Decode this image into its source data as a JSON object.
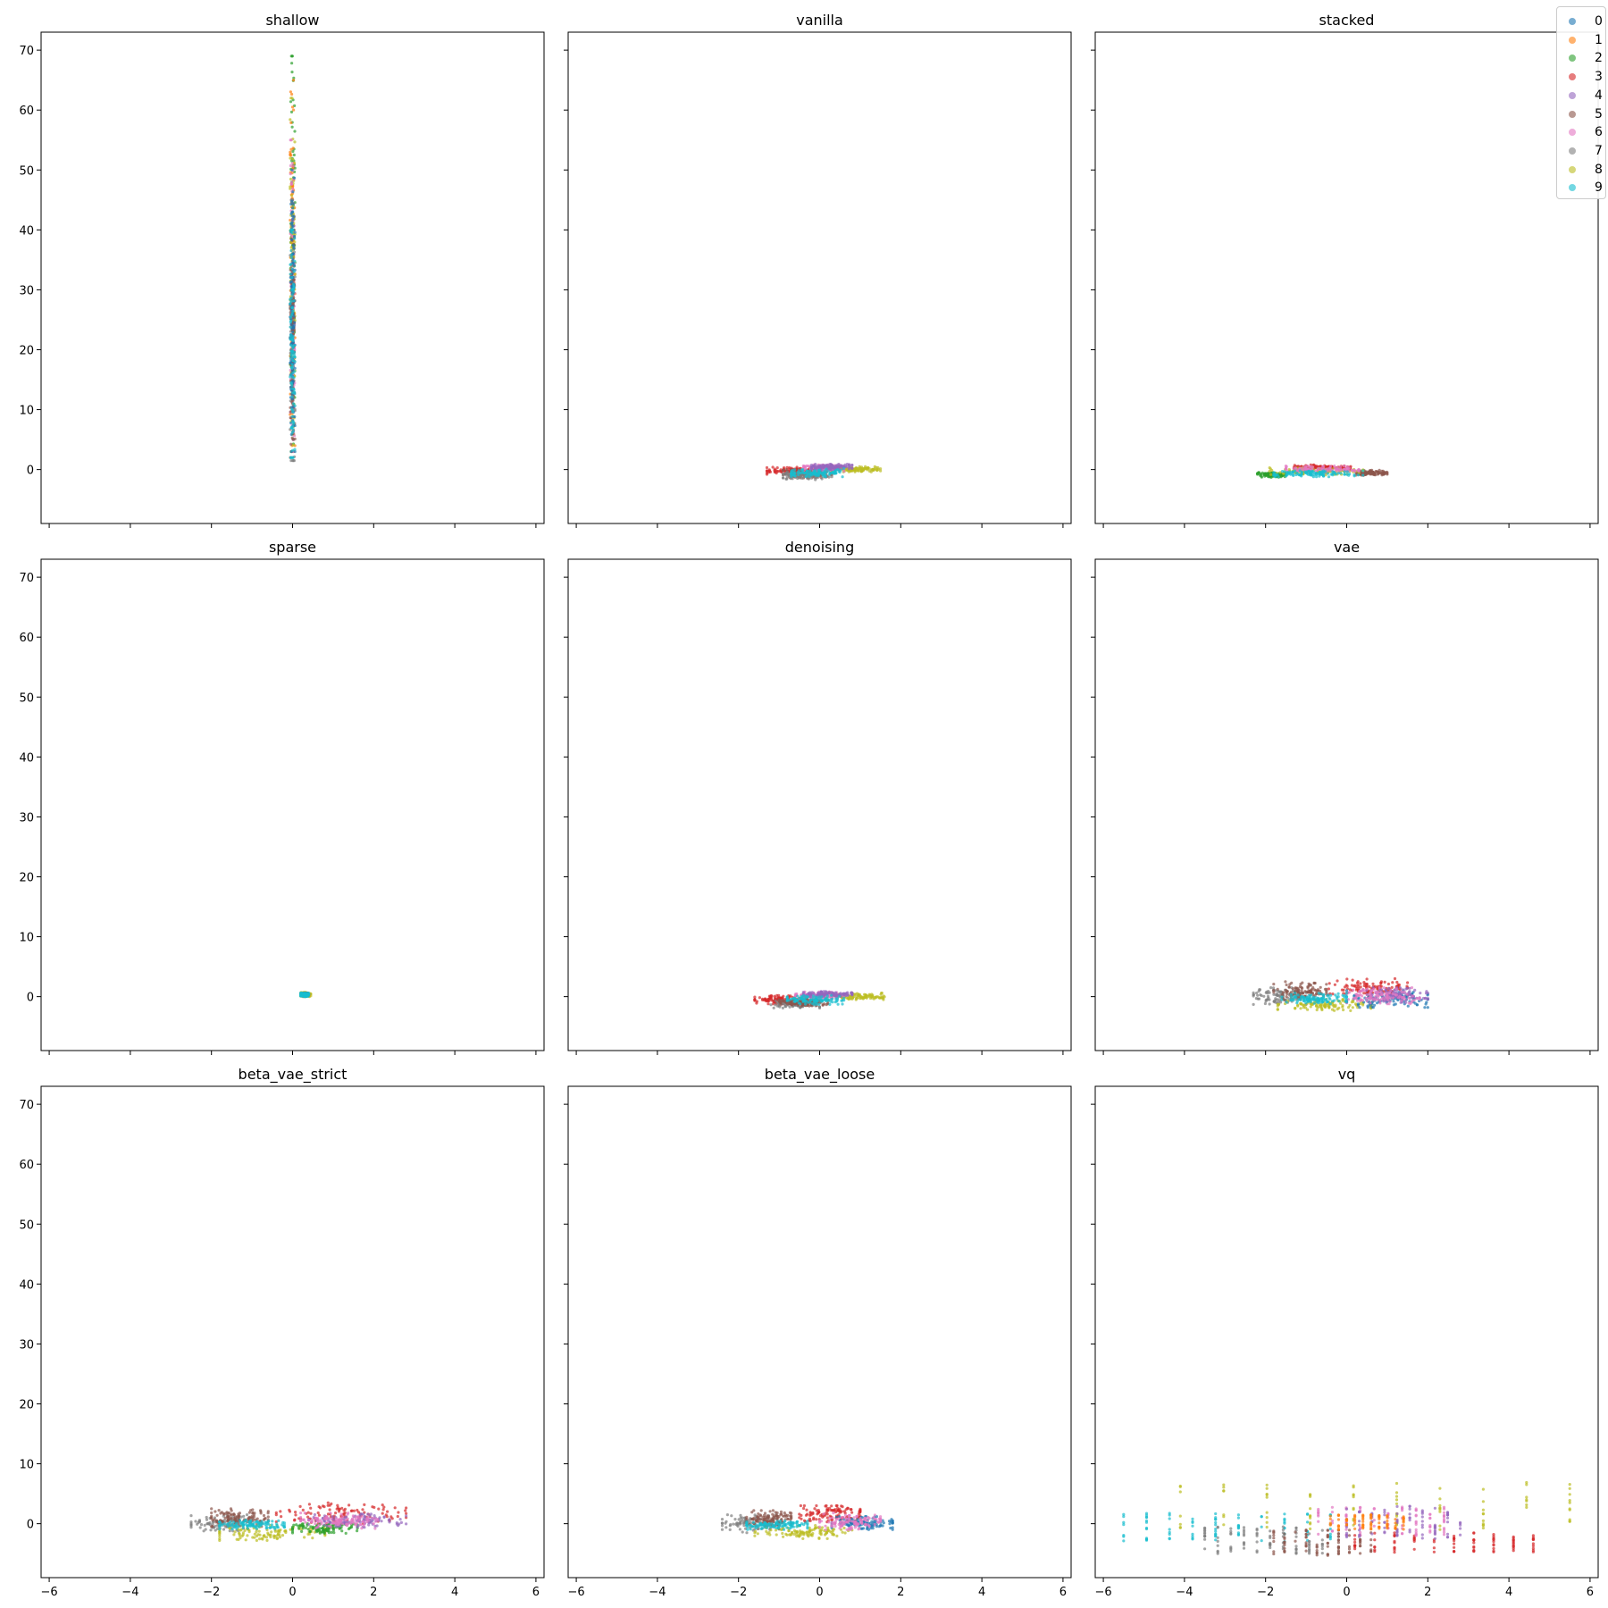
{
  "chart_data": {
    "type": "scatter",
    "xlim": [
      -6.2,
      6.2
    ],
    "ylim": [
      -9,
      73
    ],
    "xticks": [
      -6,
      -4,
      -2,
      0,
      2,
      4,
      6
    ],
    "yticks": [
      0,
      10,
      20,
      30,
      40,
      50,
      60,
      70
    ],
    "shared_axes": true,
    "grid": false,
    "legend_placement": "top-right",
    "legend_entries": [
      "0",
      "1",
      "2",
      "3",
      "4",
      "5",
      "6",
      "7",
      "8",
      "9"
    ],
    "class_colors": [
      "#1f77b4",
      "#ff7f0e",
      "#2ca02c",
      "#d62728",
      "#9467bd",
      "#8c564b",
      "#e377c2",
      "#7f7f7f",
      "#bcbd22",
      "#17becf"
    ],
    "subplots": [
      {
        "title": "shallow",
        "clusters": [
          {
            "cls": 2,
            "x": [
              -0.06,
              0.06
            ],
            "y": [
              3,
              69
            ]
          },
          {
            "cls": 1,
            "x": [
              -0.06,
              0.06
            ],
            "y": [
              4,
              65
            ]
          },
          {
            "cls": 8,
            "x": [
              -0.06,
              0.06
            ],
            "y": [
              3,
              62
            ]
          },
          {
            "cls": 6,
            "x": [
              -0.05,
              0.05
            ],
            "y": [
              3,
              55
            ]
          },
          {
            "cls": 7,
            "x": [
              -0.06,
              0.06
            ],
            "y": [
              1.5,
              45
            ]
          },
          {
            "cls": 5,
            "x": [
              -0.06,
              0.06
            ],
            "y": [
              2,
              40
            ]
          },
          {
            "cls": 0,
            "x": [
              -0.06,
              0.06
            ],
            "y": [
              3,
              50
            ]
          },
          {
            "cls": 9,
            "x": [
              -0.06,
              0.06
            ],
            "y": [
              2,
              40
            ]
          }
        ]
      },
      {
        "title": "vanilla",
        "clusters": [
          {
            "cls": 3,
            "x": [
              -1.3,
              0.0
            ],
            "y": [
              -0.8,
              0.4
            ]
          },
          {
            "cls": 5,
            "x": [
              -0.9,
              0.3
            ],
            "y": [
              -1.4,
              0.0
            ]
          },
          {
            "cls": 7,
            "x": [
              -0.9,
              0.3
            ],
            "y": [
              -1.7,
              -0.3
            ]
          },
          {
            "cls": 8,
            "x": [
              0.3,
              1.5
            ],
            "y": [
              -0.4,
              0.5
            ]
          },
          {
            "cls": 6,
            "x": [
              -0.4,
              0.6
            ],
            "y": [
              -0.3,
              0.8
            ]
          },
          {
            "cls": 4,
            "x": [
              -0.2,
              0.8
            ],
            "y": [
              0.0,
              0.9
            ]
          },
          {
            "cls": 9,
            "x": [
              -0.7,
              0.6
            ],
            "y": [
              -1.2,
              0.2
            ]
          }
        ]
      },
      {
        "title": "stacked",
        "clusters": [
          {
            "cls": 2,
            "x": [
              -2.2,
              -1.5
            ],
            "y": [
              -1.3,
              -0.5
            ]
          },
          {
            "cls": 5,
            "x": [
              0.2,
              1.0
            ],
            "y": [
              -1.0,
              -0.1
            ]
          },
          {
            "cls": 3,
            "x": [
              -1.3,
              0.1
            ],
            "y": [
              0.0,
              0.8
            ]
          },
          {
            "cls": 8,
            "x": [
              -1.9,
              0.4
            ],
            "y": [
              -0.9,
              0.3
            ]
          },
          {
            "cls": 6,
            "x": [
              -1.5,
              0.3
            ],
            "y": [
              -0.5,
              0.6
            ]
          },
          {
            "cls": 9,
            "x": [
              -1.8,
              0.4
            ],
            "y": [
              -1.2,
              -0.2
            ]
          }
        ]
      },
      {
        "title": "sparse",
        "clusters": [
          {
            "cls": 8,
            "x": [
              0.2,
              0.45
            ],
            "y": [
              0.0,
              0.7
            ]
          },
          {
            "cls": 1,
            "x": [
              0.2,
              0.4
            ],
            "y": [
              0.0,
              0.6
            ]
          },
          {
            "cls": 0,
            "x": [
              0.22,
              0.38
            ],
            "y": [
              0.1,
              0.6
            ]
          },
          {
            "cls": 9,
            "x": [
              0.2,
              0.4
            ],
            "y": [
              0.0,
              0.6
            ]
          }
        ]
      },
      {
        "title": "denoising",
        "clusters": [
          {
            "cls": 3,
            "x": [
              -1.6,
              -0.3
            ],
            "y": [
              -1.2,
              0.2
            ]
          },
          {
            "cls": 7,
            "x": [
              -1.2,
              0.0
            ],
            "y": [
              -1.9,
              -0.5
            ]
          },
          {
            "cls": 5,
            "x": [
              -1.0,
              0.2
            ],
            "y": [
              -1.6,
              -0.2
            ]
          },
          {
            "cls": 8,
            "x": [
              0.2,
              1.6
            ],
            "y": [
              -0.5,
              0.6
            ]
          },
          {
            "cls": 6,
            "x": [
              -0.6,
              0.6
            ],
            "y": [
              -0.3,
              0.8
            ]
          },
          {
            "cls": 4,
            "x": [
              -0.4,
              0.8
            ],
            "y": [
              0.0,
              0.9
            ]
          },
          {
            "cls": 9,
            "x": [
              -0.8,
              0.6
            ],
            "y": [
              -1.3,
              0.2
            ]
          }
        ]
      },
      {
        "title": "vae",
        "clusters": [
          {
            "cls": 7,
            "x": [
              -2.3,
              -1.0
            ],
            "y": [
              -1.3,
              1.5
            ]
          },
          {
            "cls": 5,
            "x": [
              -1.8,
              -0.5
            ],
            "y": [
              -0.5,
              2.5
            ]
          },
          {
            "cls": 3,
            "x": [
              -0.5,
              1.5
            ],
            "y": [
              0.0,
              3.0
            ]
          },
          {
            "cls": 8,
            "x": [
              -1.7,
              0.6
            ],
            "y": [
              -2.5,
              -0.3
            ]
          },
          {
            "cls": 0,
            "x": [
              0.0,
              2.0
            ],
            "y": [
              -1.8,
              1.0
            ]
          },
          {
            "cls": 4,
            "x": [
              0.4,
              2.0
            ],
            "y": [
              -1.0,
              1.5
            ]
          },
          {
            "cls": 6,
            "x": [
              0.0,
              1.8
            ],
            "y": [
              -1.2,
              1.5
            ]
          },
          {
            "cls": 9,
            "x": [
              -1.6,
              0.0
            ],
            "y": [
              -1.2,
              0.6
            ]
          }
        ]
      },
      {
        "title": "beta_vae_strict",
        "clusters": [
          {
            "cls": 7,
            "x": [
              -2.5,
              -1.0
            ],
            "y": [
              -1.5,
              1.5
            ]
          },
          {
            "cls": 5,
            "x": [
              -2.0,
              -0.6
            ],
            "y": [
              -0.5,
              2.5
            ]
          },
          {
            "cls": 3,
            "x": [
              -0.4,
              2.8
            ],
            "y": [
              0.0,
              3.5
            ]
          },
          {
            "cls": 8,
            "x": [
              -1.8,
              0.8
            ],
            "y": [
              -2.8,
              -0.3
            ]
          },
          {
            "cls": 2,
            "x": [
              0.0,
              1.6
            ],
            "y": [
              -1.6,
              0.0
            ]
          },
          {
            "cls": 4,
            "x": [
              0.4,
              2.8
            ],
            "y": [
              -0.6,
              1.6
            ]
          },
          {
            "cls": 6,
            "x": [
              0.2,
              2.2
            ],
            "y": [
              -0.8,
              1.8
            ]
          },
          {
            "cls": 9,
            "x": [
              -1.8,
              -0.2
            ],
            "y": [
              -0.9,
              0.6
            ]
          }
        ]
      },
      {
        "title": "beta_vae_loose",
        "clusters": [
          {
            "cls": 7,
            "x": [
              -2.4,
              -1.0
            ],
            "y": [
              -1.5,
              1.5
            ]
          },
          {
            "cls": 5,
            "x": [
              -1.8,
              -0.7
            ],
            "y": [
              -0.3,
              2.2
            ]
          },
          {
            "cls": 3,
            "x": [
              -0.5,
              1.0
            ],
            "y": [
              0.3,
              3.0
            ]
          },
          {
            "cls": 8,
            "x": [
              -1.6,
              0.8
            ],
            "y": [
              -2.5,
              -0.3
            ]
          },
          {
            "cls": 0,
            "x": [
              0.3,
              1.8
            ],
            "y": [
              -1.0,
              1.2
            ]
          },
          {
            "cls": 6,
            "x": [
              0.0,
              1.5
            ],
            "y": [
              -1.0,
              1.8
            ]
          },
          {
            "cls": 9,
            "x": [
              -1.8,
              -0.3
            ],
            "y": [
              -1.0,
              0.5
            ]
          }
        ]
      },
      {
        "title": "vq",
        "columns": true,
        "clusters": [
          {
            "cls": 9,
            "x": [
              -5.5,
              -0.4
            ],
            "y": [
              -3.2,
              1.8
            ]
          },
          {
            "cls": 8,
            "x": [
              -4.1,
              5.5
            ],
            "y": [
              -1.0,
              7.0
            ]
          },
          {
            "cls": 7,
            "x": [
              -3.5,
              -0.6
            ],
            "y": [
              -5.0,
              -0.5
            ]
          },
          {
            "cls": 5,
            "x": [
              -1.8,
              0.6
            ],
            "y": [
              -5.3,
              -1.0
            ]
          },
          {
            "cls": 3,
            "x": [
              0.2,
              4.6
            ],
            "y": [
              -4.8,
              -1.5
            ]
          },
          {
            "cls": 6,
            "x": [
              -0.7,
              2.4
            ],
            "y": [
              -2.0,
              2.8
            ]
          },
          {
            "cls": 4,
            "x": [
              0.0,
              2.8
            ],
            "y": [
              -2.5,
              3.0
            ]
          },
          {
            "cls": 1,
            "x": [
              -0.4,
              1.4
            ],
            "y": [
              -1.0,
              1.5
            ]
          }
        ]
      }
    ]
  }
}
